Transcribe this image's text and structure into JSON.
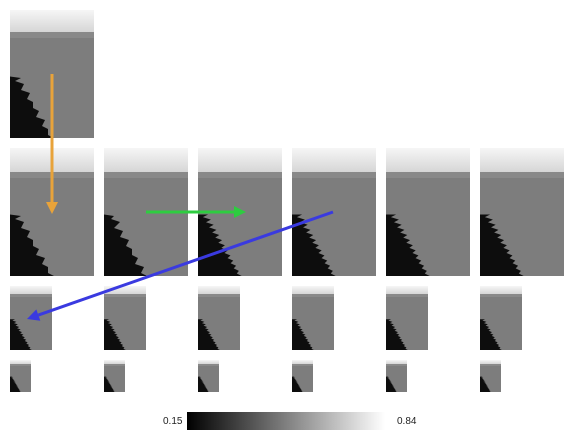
{
  "panels": {
    "top": {
      "base_level": 0.49,
      "sky_level": 0.96
    },
    "rows": [
      {
        "name": "row-1",
        "count": 6,
        "base_level": 0.5
      },
      {
        "name": "row-2",
        "count": 6,
        "base_level": 0.5
      },
      {
        "name": "row-3",
        "count": 6,
        "base_level": 0.5
      }
    ]
  },
  "arrows": [
    {
      "name": "orange-arrow",
      "color": "#E8A33A"
    },
    {
      "name": "green-arrow",
      "color": "#2ECC40"
    },
    {
      "name": "blue-arrow",
      "color": "#3A3AE0"
    }
  ],
  "colorbar": {
    "min_label": "0.15",
    "max_label": "0.84",
    "min": 0.15,
    "max": 0.84,
    "colormap": "gray"
  }
}
